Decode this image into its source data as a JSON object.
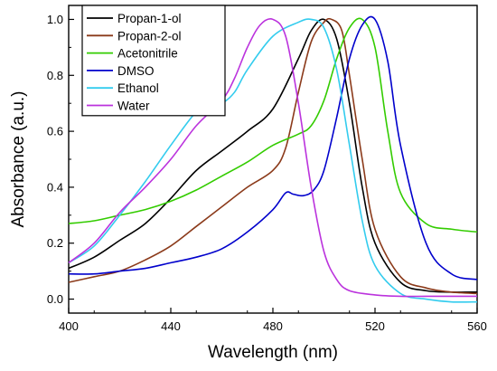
{
  "chart_data": {
    "type": "line",
    "xlabel": "Wavelength (nm)",
    "ylabel": "Absorbance (a.u.)",
    "xlim": [
      400,
      560
    ],
    "ylim": [
      -0.05,
      1.05
    ],
    "xticks": [
      400,
      440,
      480,
      520,
      560
    ],
    "yticks": [
      0.0,
      0.2,
      0.4,
      0.6,
      0.8,
      1.0
    ],
    "xtick_labels": [
      "400",
      "440",
      "480",
      "520",
      "560"
    ],
    "ytick_labels": [
      "0.0",
      "0.2",
      "0.4",
      "0.6",
      "0.8",
      "1.0"
    ],
    "grid": false,
    "legend_position": "top-left",
    "series": [
      {
        "name": "Propan-1-ol",
        "color": "#000000",
        "x": [
          400,
          410,
          420,
          430,
          440,
          450,
          460,
          470,
          480,
          490,
          495,
          500,
          505,
          510,
          515,
          520,
          530,
          540,
          550,
          560
        ],
        "y": [
          0.11,
          0.15,
          0.21,
          0.27,
          0.36,
          0.46,
          0.53,
          0.6,
          0.68,
          0.86,
          0.96,
          1.0,
          0.93,
          0.7,
          0.4,
          0.2,
          0.06,
          0.03,
          0.025,
          0.025
        ]
      },
      {
        "name": "Propan-2-ol",
        "color": "#8b3a1a",
        "x": [
          400,
          410,
          420,
          430,
          440,
          450,
          460,
          470,
          480,
          485,
          490,
          495,
          500,
          503,
          507,
          510,
          515,
          520,
          530,
          540,
          550,
          560
        ],
        "y": [
          0.06,
          0.08,
          0.1,
          0.14,
          0.19,
          0.26,
          0.33,
          0.4,
          0.46,
          0.54,
          0.74,
          0.92,
          0.99,
          1.0,
          0.96,
          0.8,
          0.5,
          0.25,
          0.08,
          0.04,
          0.025,
          0.02
        ]
      },
      {
        "name": "Acetonitrile",
        "color": "#33cc00",
        "x": [
          400,
          410,
          420,
          430,
          440,
          450,
          460,
          470,
          480,
          490,
          495,
          500,
          505,
          510,
          515,
          520,
          525,
          530,
          540,
          550,
          560
        ],
        "y": [
          0.27,
          0.28,
          0.3,
          0.32,
          0.35,
          0.39,
          0.44,
          0.49,
          0.55,
          0.59,
          0.62,
          0.71,
          0.86,
          0.97,
          1.0,
          0.9,
          0.6,
          0.38,
          0.27,
          0.25,
          0.24
        ]
      },
      {
        "name": "DMSO",
        "color": "#0000cc",
        "x": [
          400,
          410,
          420,
          430,
          440,
          450,
          460,
          470,
          480,
          485,
          488,
          492,
          496,
          500,
          505,
          510,
          515,
          520,
          525,
          530,
          540,
          550,
          560
        ],
        "y": [
          0.09,
          0.09,
          0.1,
          0.11,
          0.13,
          0.15,
          0.18,
          0.24,
          0.32,
          0.38,
          0.375,
          0.37,
          0.39,
          0.46,
          0.65,
          0.86,
          0.98,
          1.0,
          0.85,
          0.55,
          0.2,
          0.09,
          0.07
        ]
      },
      {
        "name": "Ethanol",
        "color": "#33ccee",
        "x": [
          400,
          410,
          420,
          430,
          440,
          450,
          455,
          460,
          465,
          470,
          480,
          490,
          495,
          500,
          505,
          510,
          515,
          520,
          530,
          540,
          550,
          560
        ],
        "y": [
          0.13,
          0.19,
          0.3,
          0.42,
          0.55,
          0.67,
          0.69,
          0.7,
          0.74,
          0.82,
          0.94,
          0.99,
          1.0,
          0.97,
          0.82,
          0.55,
          0.28,
          0.12,
          0.02,
          0.0,
          -0.01,
          -0.01
        ]
      },
      {
        "name": "Water",
        "color": "#bb33dd",
        "x": [
          400,
          410,
          420,
          430,
          440,
          450,
          460,
          465,
          470,
          475,
          480,
          485,
          490,
          495,
          500,
          505,
          510,
          520,
          530,
          540,
          550,
          560
        ],
        "y": [
          0.13,
          0.2,
          0.31,
          0.4,
          0.5,
          0.62,
          0.71,
          0.79,
          0.9,
          0.98,
          1.0,
          0.94,
          0.7,
          0.4,
          0.17,
          0.07,
          0.03,
          0.015,
          0.01,
          0.01,
          0.01,
          0.01
        ]
      }
    ]
  }
}
